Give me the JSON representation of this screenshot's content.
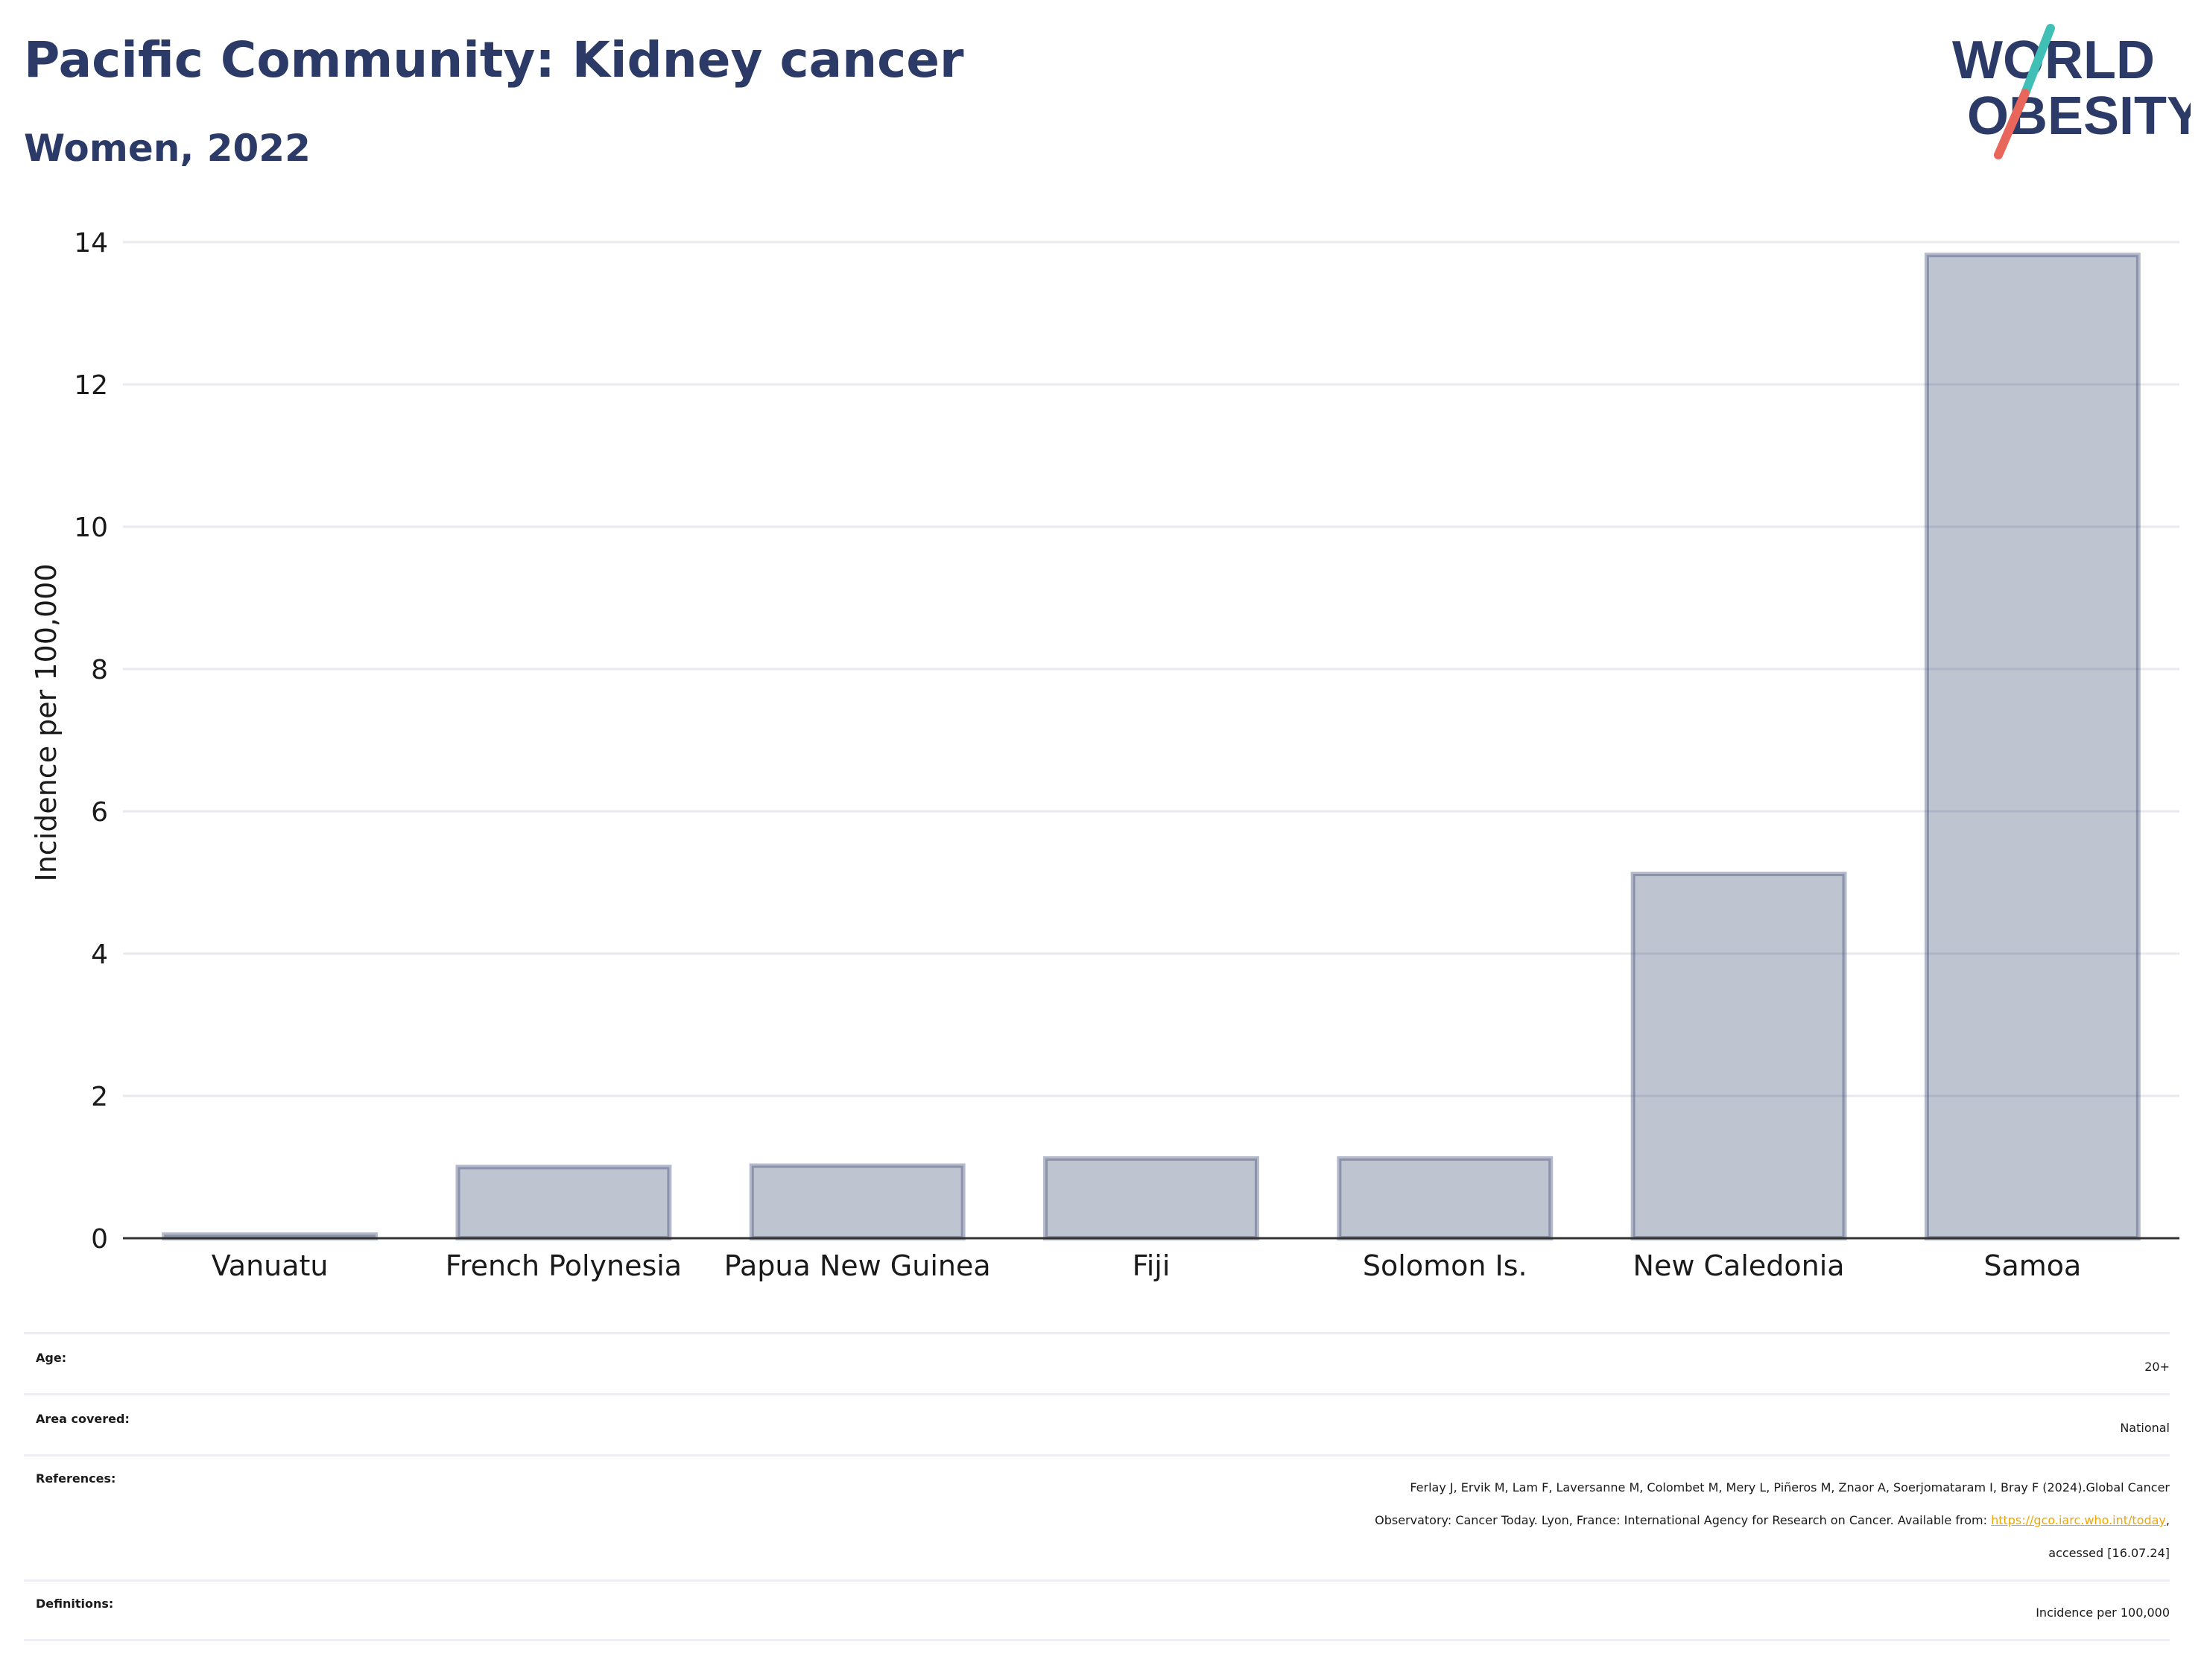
{
  "header": {
    "title": "Pacific Community: Kidney cancer",
    "subtitle": "Women, 2022"
  },
  "logo": {
    "line1": "WORLD",
    "line2": "OBESITY",
    "slash_colors": [
      "#e8675a",
      "#3fbfb5"
    ],
    "text_color": "#2b3a67"
  },
  "chart_data": {
    "type": "bar",
    "categories": [
      "Vanuatu",
      "French Polynesia",
      "Papua New Guinea",
      "Fiji",
      "Solomon Is.",
      "New Caledonia",
      "Samoa"
    ],
    "values": [
      0.05,
      1.0,
      1.02,
      1.12,
      1.12,
      5.12,
      13.82
    ],
    "ylabel": "Incidence per 100,000",
    "xlabel": "",
    "ylim": [
      0,
      14
    ],
    "yticks": [
      "0",
      "2",
      "4",
      "6",
      "8",
      "10",
      "12",
      "14"
    ],
    "grid": true,
    "bar_color": "#2b3a67",
    "bar_fill_opacity": 0.3
  },
  "info": {
    "age_label": "Age:",
    "age_value": "20+",
    "area_label": "Area covered:",
    "area_value": "National",
    "references_label": "References:",
    "references_line1": "Ferlay J, Ervik M, Lam F, Laversanne M, Colombet M, Mery L, Piñeros M, Znaor A, Soerjomataram I, Bray F (2024).Global Cancer",
    "references_line2_pre": "Observatory: Cancer Today. Lyon, France: International Agency for Research on Cancer. Available from: ",
    "references_link": "https://gco.iarc.who.int/today",
    "references_line2_post": ",",
    "references_line3": "accessed [16.07.24]",
    "definitions_label": "Definitions:",
    "definitions_value": "Incidence per 100,000"
  }
}
